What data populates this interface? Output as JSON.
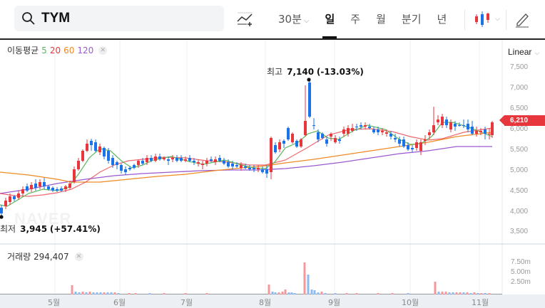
{
  "search": {
    "query": "TYM"
  },
  "toolbar": {
    "indicator_button": "indicator-add",
    "periods": [
      {
        "label": "30분",
        "has_dropdown": true,
        "active": false
      },
      {
        "label": "일",
        "active": true
      },
      {
        "label": "주",
        "active": false
      },
      {
        "label": "월",
        "active": false
      },
      {
        "label": "분기",
        "active": false
      },
      {
        "label": "년",
        "active": false
      }
    ],
    "chart_type": "candlestick",
    "draw_tool": "pencil"
  },
  "legend": {
    "title": "이동평균",
    "ma": [
      {
        "period": "5",
        "color": "#5cb85c"
      },
      {
        "period": "20",
        "color": "#e8363d"
      },
      {
        "period": "60",
        "color": "#f08a24"
      },
      {
        "period": "120",
        "color": "#9b59d0"
      }
    ]
  },
  "scale": {
    "label": "Linear"
  },
  "price_axis": [
    "7,500",
    "7,000",
    "6,500",
    "6,000",
    "5,500",
    "5,000",
    "4,500",
    "4,000",
    "3,500"
  ],
  "current_price": "6,210",
  "annotations": {
    "high": {
      "label": "최고",
      "value": "7,140",
      "change": "(-13.03%)"
    },
    "low": {
      "label": "최저",
      "value": "3,945",
      "change": "(+57.41%)"
    }
  },
  "volume": {
    "label": "거래량",
    "value": "294,407",
    "ticks": [
      "7.50m",
      "5.00m",
      "2.50m"
    ]
  },
  "x_axis": [
    "5월",
    "6월",
    "7월",
    "8월",
    "9월",
    "10월",
    "11월"
  ],
  "watermark": "NAVER",
  "colors": {
    "up": "#e8363d",
    "down": "#1a73e8",
    "vol_up": "#f4989c",
    "vol_down": "#8dbbf2"
  },
  "chart_data": {
    "type": "candlestick",
    "title": "TYM",
    "period": "일",
    "ylim": [
      3300,
      7600
    ],
    "y_ticks": [
      3500,
      4000,
      4500,
      5000,
      5500,
      6000,
      6500,
      7000,
      7500
    ],
    "x_labels": [
      "5월",
      "6월",
      "7월",
      "8월",
      "9월",
      "10월",
      "11월"
    ],
    "high": 7140,
    "low": 3945,
    "last": 6210,
    "moving_averages": [
      "MA5",
      "MA20",
      "MA60",
      "MA120"
    ],
    "volume_last": 294407,
    "volume_ticks": [
      "2.50m",
      "5.00m",
      "7.50m"
    ]
  }
}
